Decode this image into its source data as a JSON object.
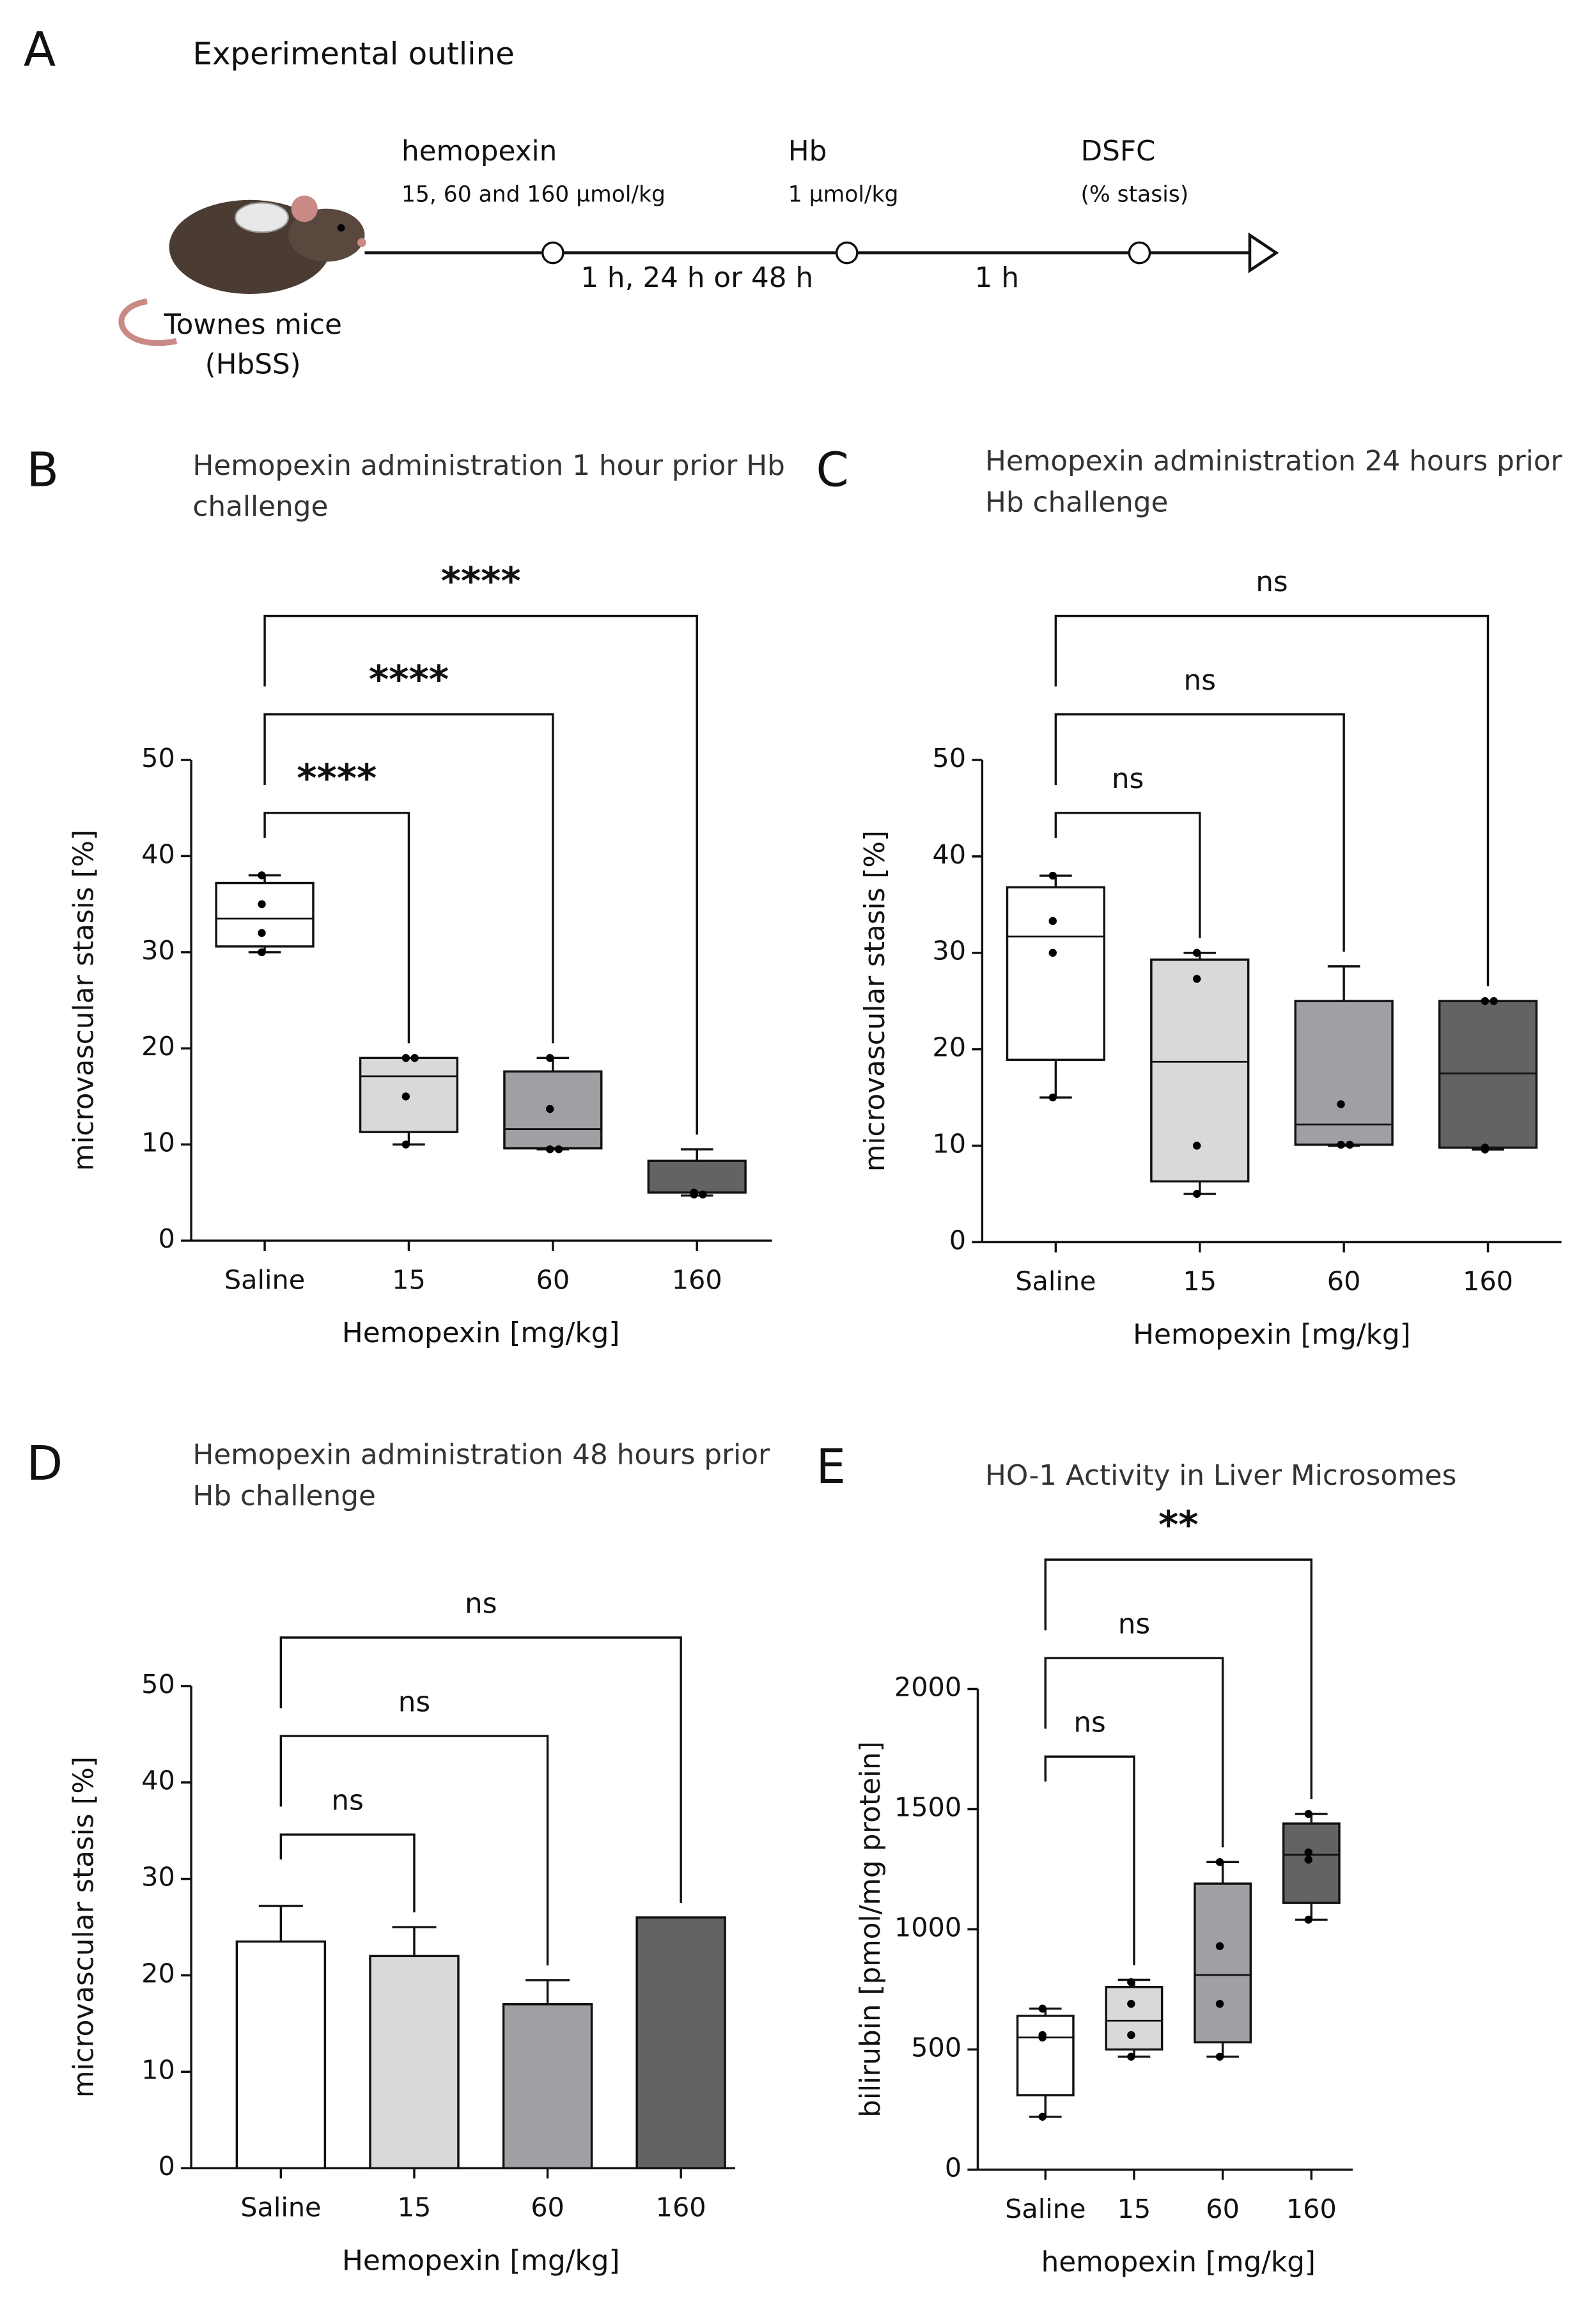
{
  "outline": {
    "panel": "A",
    "title": "Experimental outline",
    "mouse_label": [
      "Townes mice",
      "(HbSS)"
    ],
    "steps": [
      {
        "name": "hemopexin",
        "detail": "15, 60 and 160  µmol/kg"
      },
      {
        "name": "Hb",
        "detail": "1 µmol/kg"
      },
      {
        "name": "DSFC",
        "detail": "(% stasis)"
      }
    ],
    "intervals": [
      "1 h, 24 h or 48 h",
      "1 h"
    ]
  },
  "chart_data": [
    {
      "type": "box",
      "panel": "B",
      "title": "Hemopexin administration 1 hour prior Hb challenge",
      "x_label": "Hemopexin [mg/kg]",
      "y_label": "microvascular stasis [%]",
      "categories": [
        "Saline",
        "15",
        "60",
        "160"
      ],
      "colors": [
        "#ffffff",
        "#d9d9d9",
        "#a0a0a4",
        "#636363"
      ],
      "ylim": [
        0,
        50
      ],
      "yticks": [
        0,
        10,
        20,
        30,
        40,
        50
      ],
      "boxes": [
        {
          "min": 30,
          "q1": 30.6,
          "median": 33.5,
          "q3": 37.2,
          "max": 38,
          "points": [
            38,
            35,
            32,
            30
          ]
        },
        {
          "min": 10,
          "q1": 11.3,
          "median": 17.1,
          "q3": 19,
          "max": 19,
          "points": [
            19,
            19,
            15,
            10
          ]
        },
        {
          "min": 9.5,
          "q1": 9.6,
          "median": 11.6,
          "q3": 17.6,
          "max": 19,
          "points": [
            19,
            13.7,
            9.5,
            9.5
          ]
        },
        {
          "min": 4.7,
          "q1": 5,
          "median": 5,
          "q3": 8.3,
          "max": 9.5,
          "points": [
            4.8,
            4.8,
            5
          ]
        }
      ],
      "comparisons": [
        {
          "groups": [
            0,
            1
          ],
          "label": "****"
        },
        {
          "groups": [
            0,
            2
          ],
          "label": "****"
        },
        {
          "groups": [
            0,
            3
          ],
          "label": "****"
        }
      ]
    },
    {
      "type": "box",
      "panel": "C",
      "title": "Hemopexin administration 24 hours prior Hb challenge",
      "x_label": "Hemopexin [mg/kg]",
      "y_label": "microvascular stasis [%]",
      "categories": [
        "Saline",
        "15",
        "60",
        "160"
      ],
      "colors": [
        "#ffffff",
        "#d9d9d9",
        "#a0a0a4",
        "#636363"
      ],
      "ylim": [
        0,
        50
      ],
      "yticks": [
        0,
        10,
        20,
        30,
        40,
        50
      ],
      "boxes": [
        {
          "min": 15,
          "q1": 18.9,
          "median": 31.7,
          "q3": 36.8,
          "max": 38,
          "points": [
            38,
            33.3,
            30,
            15
          ]
        },
        {
          "min": 5,
          "q1": 6.3,
          "median": 18.7,
          "q3": 29.3,
          "max": 30,
          "points": [
            30,
            27.3,
            10,
            5
          ]
        },
        {
          "min": 10,
          "q1": 10.1,
          "median": 12.2,
          "q3": 25,
          "max": 28.6,
          "points": [
            14.3,
            10.1,
            10.1
          ]
        },
        {
          "min": 9.6,
          "q1": 9.8,
          "median": 17.5,
          "q3": 25,
          "max": 25,
          "points": [
            25,
            25,
            9.8,
            9.6
          ]
        }
      ],
      "comparisons": [
        {
          "groups": [
            0,
            1
          ],
          "label": "ns"
        },
        {
          "groups": [
            0,
            2
          ],
          "label": "ns"
        },
        {
          "groups": [
            0,
            3
          ],
          "label": "ns"
        }
      ]
    },
    {
      "type": "bar",
      "panel": "D",
      "title": "Hemopexin administration 48 hours prior Hb challenge",
      "x_label": "Hemopexin [mg/kg]",
      "y_label": "microvascular stasis [%]",
      "categories": [
        "Saline",
        "15",
        "60",
        "160"
      ],
      "colors": [
        "#ffffff",
        "#d9d9d9",
        "#a0a0a4",
        "#636363"
      ],
      "ylim": [
        0,
        50
      ],
      "yticks": [
        0,
        10,
        20,
        30,
        40,
        50
      ],
      "values": [
        23.5,
        22,
        17,
        26
      ],
      "errors": [
        3.7,
        3,
        2.5,
        null
      ],
      "comparisons": [
        {
          "groups": [
            0,
            1
          ],
          "label": "ns"
        },
        {
          "groups": [
            0,
            2
          ],
          "label": "ns"
        },
        {
          "groups": [
            0,
            3
          ],
          "label": "ns"
        }
      ]
    },
    {
      "type": "box",
      "panel": "E",
      "title": "HO-1 Activity in Liver Microsomes",
      "x_label": "hemopexin [mg/kg]",
      "y_label": "bilirubin [pmol/mg protein]",
      "categories": [
        "Saline",
        "15",
        "60",
        "160"
      ],
      "colors": [
        "#ffffff",
        "#d9d9d9",
        "#a0a0a4",
        "#636363"
      ],
      "ylim": [
        0,
        2000
      ],
      "yticks": [
        0,
        500,
        1000,
        1500,
        2000
      ],
      "boxes": [
        {
          "min": 220,
          "q1": 310,
          "median": 550,
          "q3": 640,
          "max": 670,
          "points": [
            670,
            560,
            550,
            220
          ]
        },
        {
          "min": 470,
          "q1": 500,
          "median": 620,
          "q3": 760,
          "max": 790,
          "points": [
            780,
            690,
            560,
            470
          ]
        },
        {
          "min": 470,
          "q1": 530,
          "median": 810,
          "q3": 1190,
          "max": 1280,
          "points": [
            1280,
            930,
            690,
            470
          ]
        },
        {
          "min": 1040,
          "q1": 1110,
          "median": 1310,
          "q3": 1440,
          "max": 1480,
          "points": [
            1480,
            1320,
            1290,
            1040
          ]
        }
      ],
      "comparisons": [
        {
          "groups": [
            0,
            1
          ],
          "label": "ns"
        },
        {
          "groups": [
            0,
            2
          ],
          "label": "ns"
        },
        {
          "groups": [
            0,
            3
          ],
          "label": "**"
        }
      ]
    }
  ]
}
